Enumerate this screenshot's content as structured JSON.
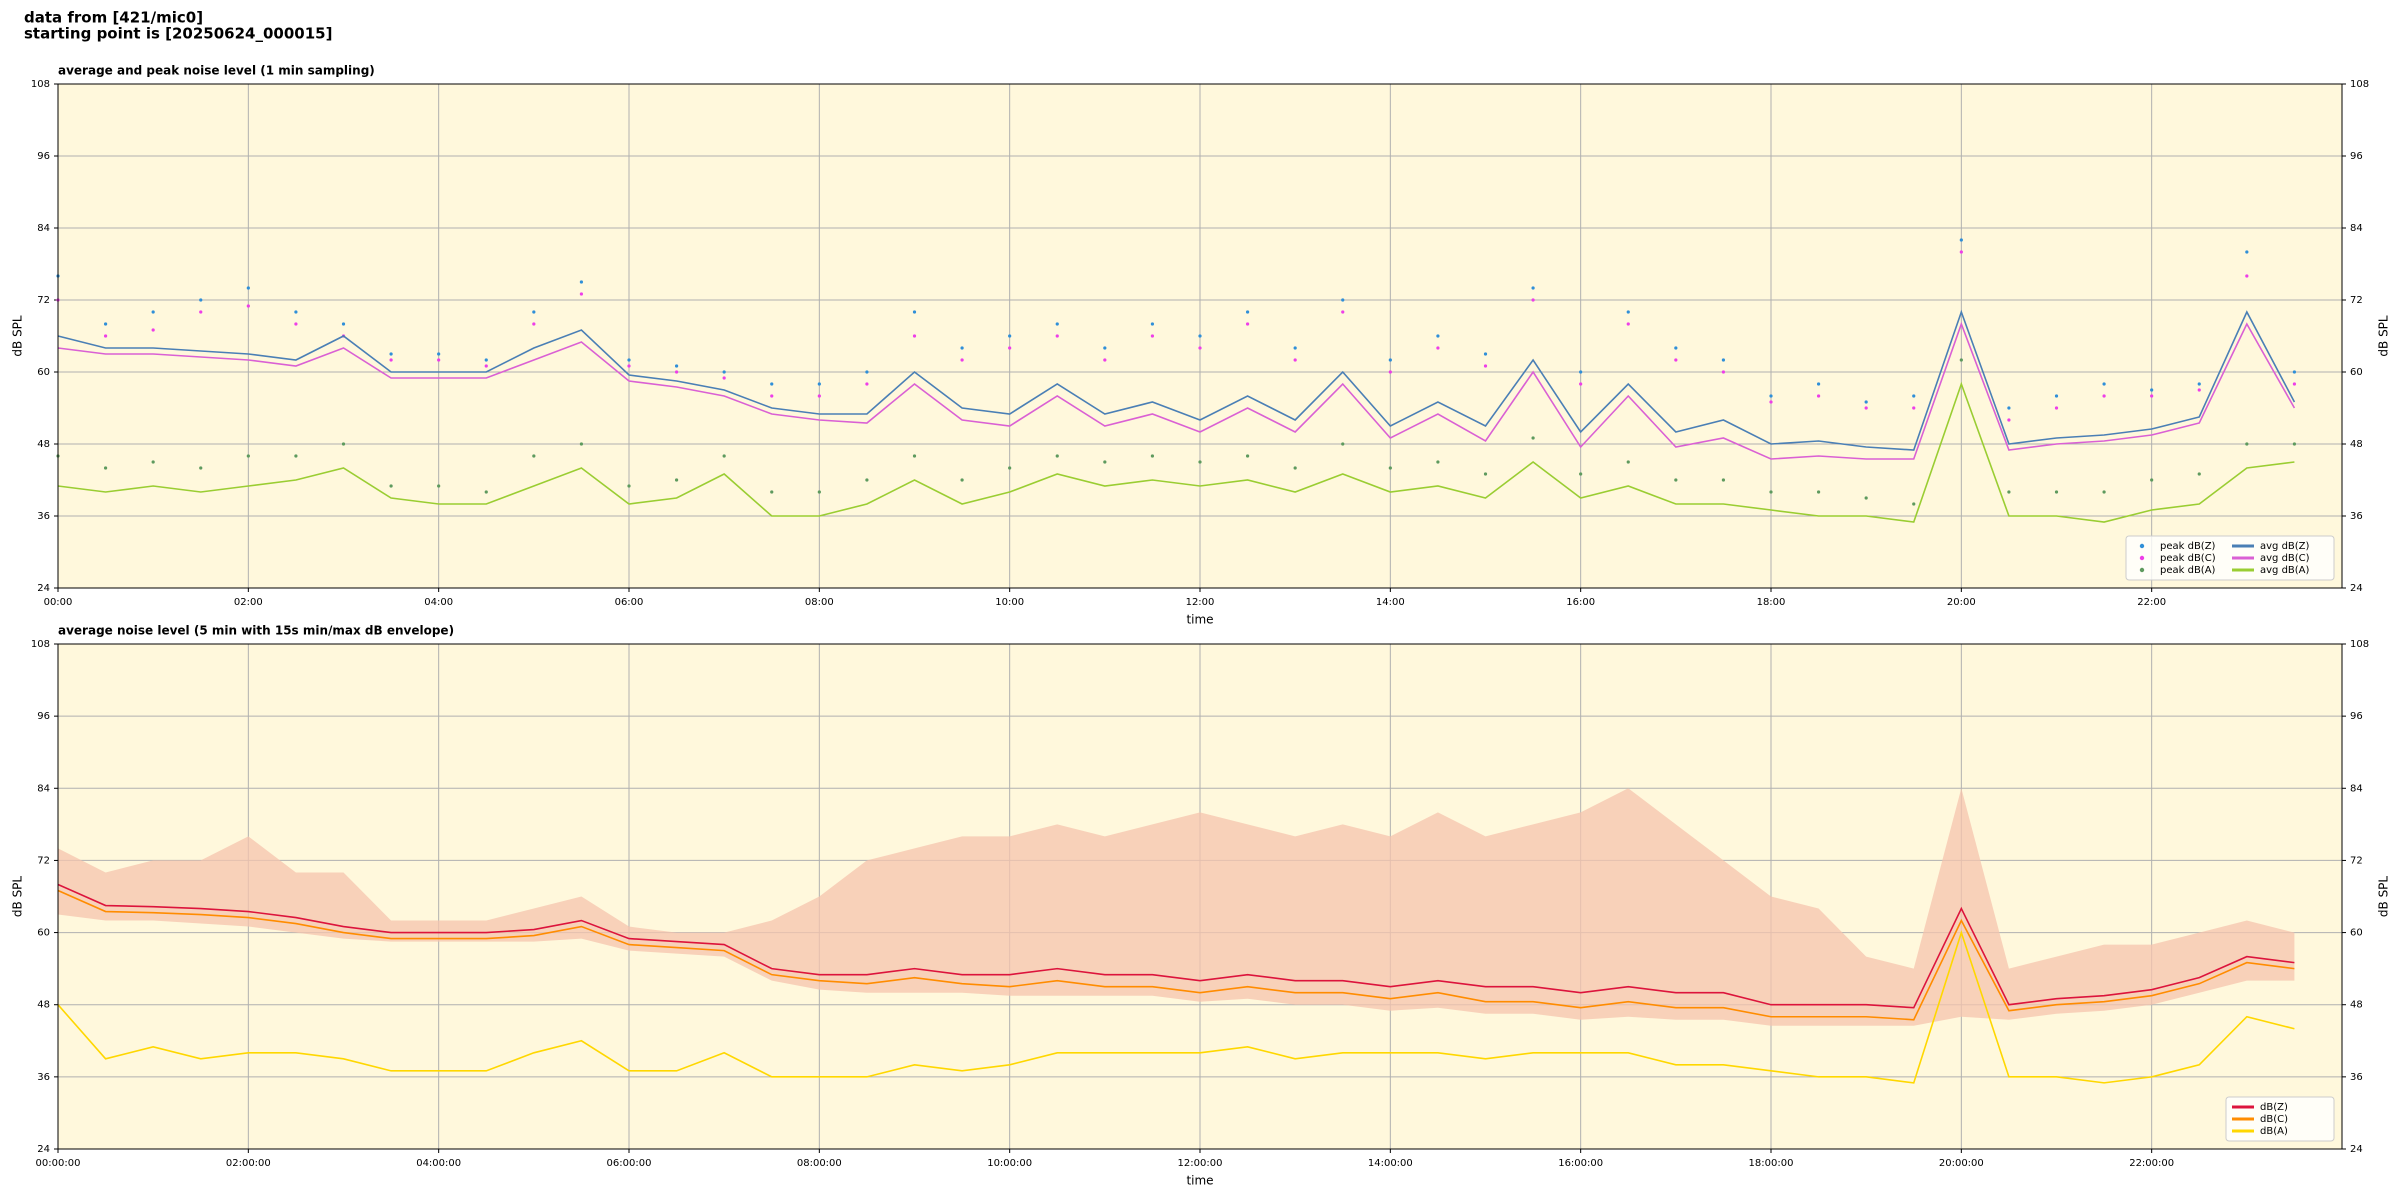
{
  "header": [
    "data from [421/mic0]",
    "starting point is [20250624_000015]"
  ],
  "chart_data": [
    {
      "type": "line",
      "title": "average and peak noise level (1 min sampling)",
      "x_label": "time",
      "y_label": "dB SPL",
      "grid": true,
      "legend": "lower right",
      "legend_columns": 2,
      "background": "#fff8dc",
      "xlim": [
        0,
        24
      ],
      "ylim": [
        24,
        108
      ],
      "xticks": [
        {
          "value": 0,
          "label": "00:00"
        },
        {
          "value": 2,
          "label": "02:00"
        },
        {
          "value": 4,
          "label": "04:00"
        },
        {
          "value": 6,
          "label": "06:00"
        },
        {
          "value": 8,
          "label": "08:00"
        },
        {
          "value": 10,
          "label": "10:00"
        },
        {
          "value": 12,
          "label": "12:00"
        },
        {
          "value": 14,
          "label": "14:00"
        },
        {
          "value": 16,
          "label": "16:00"
        },
        {
          "value": 18,
          "label": "18:00"
        },
        {
          "value": 20,
          "label": "20:00"
        },
        {
          "value": 22,
          "label": "22:00"
        }
      ],
      "yticks": [
        24,
        36,
        48,
        60,
        72,
        84,
        96,
        108
      ],
      "x": [
        0,
        0.5,
        1,
        1.5,
        2,
        2.5,
        3,
        3.5,
        4,
        4.5,
        5,
        5.5,
        6,
        6.5,
        7,
        7.5,
        8,
        8.5,
        9,
        9.5,
        10,
        10.5,
        11,
        11.5,
        12,
        12.5,
        13,
        13.5,
        14,
        14.5,
        15,
        15.5,
        16,
        16.5,
        17,
        17.5,
        18,
        18.5,
        19,
        19.5,
        20,
        20.5,
        21,
        21.5,
        22,
        22.5,
        23,
        23.5
      ],
      "series": [
        {
          "name": "peak dB(Z)",
          "kind": "scatter",
          "color": "#2f8fd8",
          "values": [
            76,
            68,
            70,
            72,
            74,
            70,
            68,
            63,
            63,
            62,
            70,
            75,
            62,
            61,
            60,
            58,
            58,
            60,
            70,
            64,
            66,
            68,
            64,
            68,
            66,
            70,
            64,
            72,
            62,
            66,
            63,
            74,
            60,
            70,
            64,
            62,
            56,
            58,
            55,
            56,
            82,
            54,
            56,
            58,
            57,
            58,
            80,
            60
          ]
        },
        {
          "name": "peak dB(C)",
          "kind": "scatter",
          "color": "#ee3ee8",
          "values": [
            72,
            66,
            67,
            70,
            71,
            68,
            66,
            62,
            62,
            61,
            68,
            73,
            61,
            60,
            59,
            56,
            56,
            58,
            66,
            62,
            64,
            66,
            62,
            66,
            64,
            68,
            62,
            70,
            60,
            64,
            61,
            72,
            58,
            68,
            62,
            60,
            55,
            56,
            54,
            54,
            80,
            52,
            54,
            56,
            56,
            57,
            76,
            58
          ]
        },
        {
          "name": "peak dB(A)",
          "kind": "scatter",
          "color": "#5e9a5e",
          "values": [
            46,
            44,
            45,
            44,
            46,
            46,
            48,
            41,
            41,
            40,
            46,
            48,
            41,
            42,
            46,
            40,
            40,
            42,
            46,
            42,
            44,
            46,
            45,
            46,
            45,
            46,
            44,
            48,
            44,
            45,
            43,
            49,
            43,
            45,
            42,
            42,
            40,
            40,
            39,
            38,
            62,
            40,
            40,
            40,
            42,
            43,
            48,
            48
          ]
        },
        {
          "name": "avg dB(Z)",
          "kind": "line",
          "color": "#4a7fb5",
          "values": [
            66,
            64,
            64,
            63.5,
            63,
            62,
            66,
            60,
            60,
            60,
            64,
            67,
            59.5,
            58.5,
            57,
            54,
            53,
            53,
            60,
            54,
            53,
            58,
            53,
            55,
            52,
            56,
            52,
            60,
            51,
            55,
            51,
            62,
            50,
            58,
            50,
            52,
            48,
            48.5,
            47.5,
            47,
            70,
            48,
            49,
            49.5,
            50.5,
            52.5,
            70,
            55
          ]
        },
        {
          "name": "avg dB(C)",
          "kind": "line",
          "color": "#da60d4",
          "values": [
            64,
            63,
            63,
            62.5,
            62,
            61,
            64,
            59,
            59,
            59,
            62,
            65,
            58.5,
            57.5,
            56,
            53,
            52,
            51.5,
            58,
            52,
            51,
            56,
            51,
            53,
            50,
            54,
            50,
            58,
            49,
            53,
            48.5,
            60,
            47.5,
            56,
            47.5,
            49,
            45.5,
            46,
            45.5,
            45.5,
            68,
            47,
            48,
            48.5,
            49.5,
            51.5,
            68,
            54
          ]
        },
        {
          "name": "avg dB(A)",
          "kind": "line",
          "color": "#9acd32",
          "values": [
            41,
            40,
            41,
            40,
            41,
            42,
            44,
            39,
            38,
            38,
            41,
            44,
            38,
            39,
            43,
            36,
            36,
            38,
            42,
            38,
            40,
            43,
            41,
            42,
            41,
            42,
            40,
            43,
            40,
            41,
            39,
            45,
            39,
            41,
            38,
            38,
            37,
            36,
            36,
            35,
            58,
            36,
            36,
            35,
            37,
            38,
            44,
            45
          ]
        }
      ]
    },
    {
      "type": "line",
      "title": "average noise level (5 min with 15s min/max dB envelope)",
      "x_label": "time",
      "y_label": "dB SPL",
      "grid": true,
      "legend": "lower right",
      "legend_columns": 1,
      "background": "#fff8dc",
      "xlim": [
        0,
        24
      ],
      "ylim": [
        24,
        108
      ],
      "xticks": [
        {
          "value": 0,
          "label": "00:00:00"
        },
        {
          "value": 2,
          "label": "02:00:00"
        },
        {
          "value": 4,
          "label": "04:00:00"
        },
        {
          "value": 6,
          "label": "06:00:00"
        },
        {
          "value": 8,
          "label": "08:00:00"
        },
        {
          "value": 10,
          "label": "10:00:00"
        },
        {
          "value": 12,
          "label": "12:00:00"
        },
        {
          "value": 14,
          "label": "14:00:00"
        },
        {
          "value": 16,
          "label": "16:00:00"
        },
        {
          "value": 18,
          "label": "18:00:00"
        },
        {
          "value": 20,
          "label": "20:00:00"
        },
        {
          "value": 22,
          "label": "22:00:00"
        }
      ],
      "yticks": [
        24,
        36,
        48,
        60,
        72,
        84,
        96,
        108
      ],
      "x": [
        0,
        0.5,
        1,
        1.5,
        2,
        2.5,
        3,
        3.5,
        4,
        4.5,
        5,
        5.5,
        6,
        6.5,
        7,
        7.5,
        8,
        8.5,
        9,
        9.5,
        10,
        10.5,
        11,
        11.5,
        12,
        12.5,
        13,
        13.5,
        14,
        14.5,
        15,
        15.5,
        16,
        16.5,
        17,
        17.5,
        18,
        18.5,
        19,
        19.5,
        20,
        20.5,
        21,
        21.5,
        22,
        22.5,
        23,
        23.5
      ],
      "envelope": {
        "color": "#f5c4ae",
        "high": [
          74,
          70,
          72,
          72,
          76,
          70,
          70,
          62,
          62,
          62,
          64,
          66,
          61,
          60,
          60,
          62,
          66,
          72,
          74,
          76,
          76,
          78,
          76,
          78,
          80,
          78,
          76,
          78,
          76,
          80,
          76,
          78,
          80,
          84,
          78,
          72,
          66,
          64,
          56,
          54,
          84,
          54,
          56,
          58,
          58,
          60,
          62,
          60
        ],
        "low": [
          63,
          62,
          62,
          61.5,
          61,
          60,
          59,
          58.5,
          58.5,
          58.5,
          58.5,
          59,
          57,
          56.5,
          56,
          52,
          50.5,
          50,
          50,
          50,
          49.5,
          49.5,
          49.5,
          49.5,
          48.5,
          49,
          48,
          48,
          47,
          47.5,
          46.5,
          46.5,
          45.5,
          46,
          45.5,
          45.5,
          44.5,
          44.5,
          44.5,
          44.5,
          46,
          45.5,
          46.5,
          47,
          48,
          50,
          52,
          52
        ]
      },
      "series": [
        {
          "name": "dB(Z)",
          "kind": "line",
          "color": "#dc143c",
          "values": [
            68,
            64.5,
            64.3,
            64,
            63.5,
            62.5,
            61,
            60,
            60,
            60,
            60.5,
            62,
            59,
            58.5,
            58,
            54,
            53,
            53,
            54,
            53,
            53,
            54,
            53,
            53,
            52,
            53,
            52,
            52,
            51,
            52,
            51,
            51,
            50,
            51,
            50,
            50,
            48,
            48,
            48,
            47.5,
            64,
            48,
            49,
            49.5,
            50.5,
            52.5,
            56,
            55
          ]
        },
        {
          "name": "dB(C)",
          "kind": "line",
          "color": "#ff8c00",
          "values": [
            67,
            63.5,
            63.3,
            63,
            62.5,
            61.5,
            60,
            59,
            59,
            59,
            59.5,
            61,
            58,
            57.5,
            57,
            53,
            52,
            51.5,
            52.5,
            51.5,
            51,
            52,
            51,
            51,
            50,
            51,
            50,
            50,
            49,
            50,
            48.5,
            48.5,
            47.5,
            48.5,
            47.5,
            47.5,
            46,
            46,
            46,
            45.5,
            62,
            47,
            48,
            48.5,
            49.5,
            51.5,
            55,
            54
          ]
        },
        {
          "name": "dB(A)",
          "kind": "line",
          "color": "#ffd700",
          "values": [
            48,
            39,
            41,
            39,
            40,
            40,
            39,
            37,
            37,
            37,
            40,
            42,
            37,
            37,
            40,
            36,
            36,
            36,
            38,
            37,
            38,
            40,
            40,
            40,
            40,
            41,
            39,
            40,
            40,
            40,
            39,
            40,
            40,
            40,
            38,
            38,
            37,
            36,
            36,
            35,
            60,
            36,
            36,
            35,
            36,
            38,
            46,
            44
          ]
        }
      ]
    }
  ]
}
